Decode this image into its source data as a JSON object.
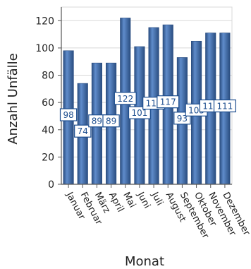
{
  "chart_data": {
    "type": "bar",
    "title": "",
    "xlabel": "Monat",
    "ylabel": "Anzahl Unfälle",
    "categories": [
      "Januar",
      "Februar",
      "März",
      "April",
      "Mai",
      "Juni",
      "Juli",
      "August",
      "September",
      "Oktober",
      "November",
      "Dezember"
    ],
    "values": [
      98,
      74,
      89,
      89,
      122,
      101,
      115,
      117,
      93,
      105,
      111,
      111
    ],
    "ylim": [
      0,
      130
    ],
    "yticks": [
      0,
      20,
      40,
      60,
      80,
      100,
      120
    ],
    "grid": true,
    "legend": "none",
    "colors": {
      "bar": "#3c69a8",
      "bar_dark": "#2a4d80",
      "bar_light": "#5f8ccb",
      "grid": "#d8d8d8",
      "label_border": "#1d4e8f"
    }
  }
}
